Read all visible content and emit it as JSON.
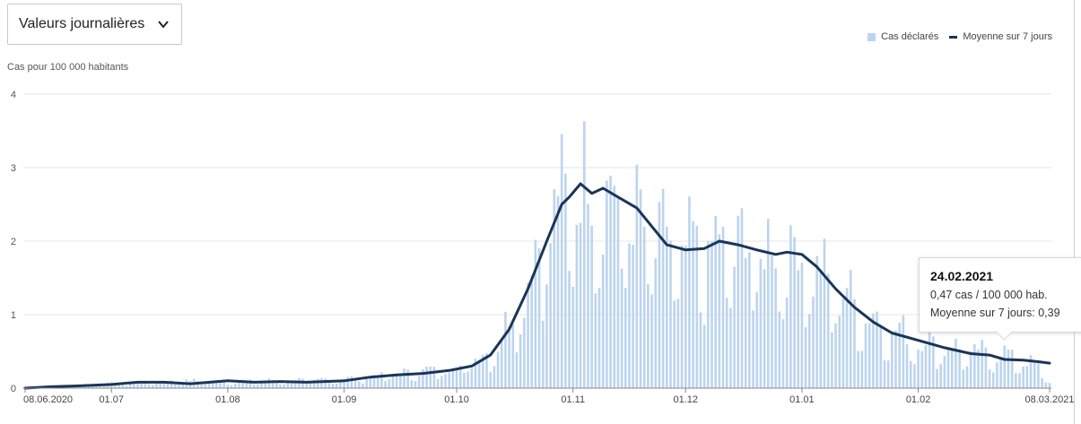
{
  "controls": {
    "dropdown_value": "Valeurs journalières"
  },
  "legend": {
    "bars_label": "Cas déclarés",
    "line_label": "Moyenne sur 7 jours"
  },
  "colors": {
    "bars": "#bcd4ee",
    "line": "#1a3557",
    "grid": "#e6e6e6"
  },
  "tooltip": {
    "date": "24.02.2021",
    "cases_text": "0,47 cas / 100 000 hab.",
    "avg_text": "Moyenne sur 7 jours: 0,39"
  },
  "chart_data": {
    "type": "bar",
    "ylabel": "Cas pour 100 000 habitants",
    "ylim": [
      0,
      4
    ],
    "y_ticks": [
      "0",
      "1",
      "2",
      "3",
      "4"
    ],
    "x_start_date": "08.06.2020",
    "x_end_date": "08.03.2021",
    "x_ticks": [
      {
        "date": "08.06.2020",
        "label": "08.06.2020"
      },
      {
        "date": "01.07.2020",
        "label": "01.07"
      },
      {
        "date": "01.08.2020",
        "label": "01.08"
      },
      {
        "date": "01.09.2020",
        "label": "01.09"
      },
      {
        "date": "01.10.2020",
        "label": "01.10"
      },
      {
        "date": "01.11.2020",
        "label": "01.11"
      },
      {
        "date": "01.12.2020",
        "label": "01.12"
      },
      {
        "date": "01.01.2021",
        "label": "01.01"
      },
      {
        "date": "01.02.2021",
        "label": "01.02"
      },
      {
        "date": "08.03.2021",
        "label": "08.03.2021"
      }
    ],
    "legend_position": "top-right",
    "grid": true,
    "series": [
      {
        "name": "Cas déclarés",
        "type": "bar",
        "anchors": [
          [
            "08.06.2020",
            0.02
          ],
          [
            "01.07.2020",
            0.06
          ],
          [
            "20.07.2020",
            0.1
          ],
          [
            "01.08.2020",
            0.09
          ],
          [
            "01.09.2020",
            0.12
          ],
          [
            "15.09.2020",
            0.2
          ],
          [
            "01.10.2020",
            0.28
          ],
          [
            "10.10.2020",
            0.5
          ],
          [
            "15.10.2020",
            0.9
          ],
          [
            "20.10.2020",
            1.5
          ],
          [
            "25.10.2020",
            2.3
          ],
          [
            "01.11.2020",
            2.8
          ],
          [
            "10.11.2020",
            2.7
          ],
          [
            "20.11.2020",
            2.2
          ],
          [
            "01.12.2020",
            1.9
          ],
          [
            "15.12.2020",
            2.0
          ],
          [
            "01.01.2021",
            1.8
          ],
          [
            "10.01.2021",
            1.4
          ],
          [
            "20.01.2021",
            0.95
          ],
          [
            "01.02.2021",
            0.65
          ],
          [
            "15.02.2021",
            0.5
          ],
          [
            "24.02.2021",
            0.47
          ],
          [
            "05.03.2021",
            0.3
          ],
          [
            "08.03.2021",
            0.08
          ]
        ]
      },
      {
        "name": "Moyenne sur 7 jours",
        "type": "line",
        "points": [
          [
            "08.06.2020",
            0.0
          ],
          [
            "15.06.2020",
            0.02
          ],
          [
            "22.06.2020",
            0.03
          ],
          [
            "01.07.2020",
            0.05
          ],
          [
            "08.07.2020",
            0.08
          ],
          [
            "15.07.2020",
            0.08
          ],
          [
            "22.07.2020",
            0.06
          ],
          [
            "01.08.2020",
            0.1
          ],
          [
            "08.08.2020",
            0.08
          ],
          [
            "15.08.2020",
            0.09
          ],
          [
            "22.08.2020",
            0.08
          ],
          [
            "01.09.2020",
            0.1
          ],
          [
            "08.09.2020",
            0.15
          ],
          [
            "15.09.2020",
            0.18
          ],
          [
            "22.09.2020",
            0.2
          ],
          [
            "29.09.2020",
            0.24
          ],
          [
            "05.10.2020",
            0.3
          ],
          [
            "10.10.2020",
            0.45
          ],
          [
            "15.10.2020",
            0.8
          ],
          [
            "20.10.2020",
            1.35
          ],
          [
            "25.10.2020",
            2.0
          ],
          [
            "29.10.2020",
            2.5
          ],
          [
            "31.10.2020",
            2.6
          ],
          [
            "03.11.2020",
            2.78
          ],
          [
            "06.11.2020",
            2.65
          ],
          [
            "09.11.2020",
            2.72
          ],
          [
            "13.11.2020",
            2.6
          ],
          [
            "18.11.2020",
            2.45
          ],
          [
            "22.11.2020",
            2.2
          ],
          [
            "26.11.2020",
            1.95
          ],
          [
            "01.12.2020",
            1.88
          ],
          [
            "06.12.2020",
            1.9
          ],
          [
            "10.12.2020",
            2.0
          ],
          [
            "15.12.2020",
            1.95
          ],
          [
            "20.12.2020",
            1.88
          ],
          [
            "25.12.2020",
            1.82
          ],
          [
            "28.12.2020",
            1.85
          ],
          [
            "01.01.2021",
            1.82
          ],
          [
            "05.01.2021",
            1.65
          ],
          [
            "10.01.2021",
            1.35
          ],
          [
            "15.01.2021",
            1.1
          ],
          [
            "20.01.2021",
            0.9
          ],
          [
            "25.01.2021",
            0.75
          ],
          [
            "01.02.2021",
            0.65
          ],
          [
            "08.02.2021",
            0.55
          ],
          [
            "15.02.2021",
            0.47
          ],
          [
            "20.02.2021",
            0.45
          ],
          [
            "24.02.2021",
            0.39
          ],
          [
            "01.03.2021",
            0.38
          ],
          [
            "05.03.2021",
            0.36
          ],
          [
            "08.03.2021",
            0.34
          ]
        ]
      }
    ]
  }
}
